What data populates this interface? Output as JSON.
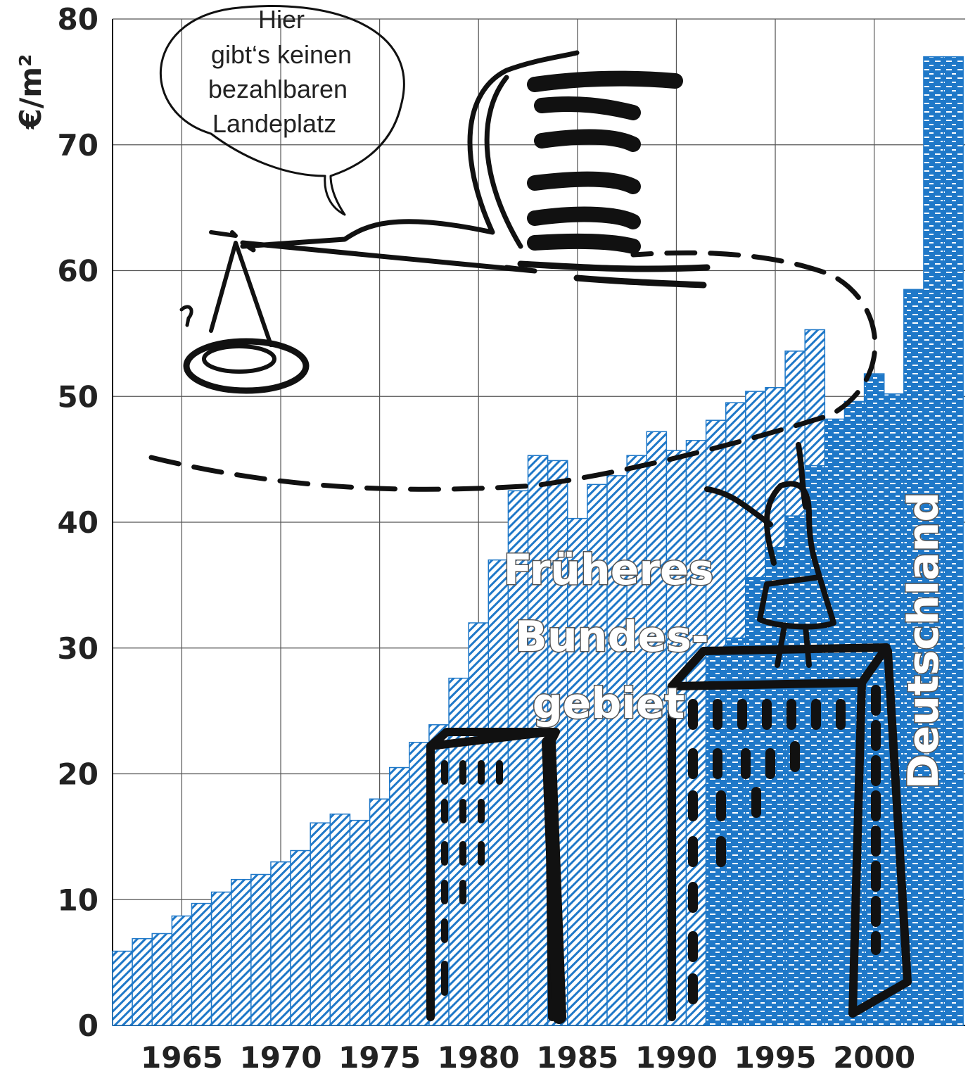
{
  "chart_data": {
    "type": "bar",
    "y_label": "€/m²",
    "annotation": [
      "Hier",
      "gibt‘s keinen",
      "bezahlbaren",
      "Landeplatz"
    ],
    "x": [
      1962,
      1963,
      1964,
      1965,
      1966,
      1967,
      1968,
      1969,
      1970,
      1971,
      1972,
      1973,
      1974,
      1975,
      1976,
      1977,
      1978,
      1979,
      1980,
      1981,
      1982,
      1983,
      1984,
      1985,
      1986,
      1987,
      1988,
      1989,
      1990,
      1991,
      1992,
      1993,
      1994,
      1995,
      1996,
      1997,
      1998,
      1999,
      2000,
      2001,
      2002,
      2003,
      2004
    ],
    "series": [
      {
        "name": [
          "Früheres",
          "Bundes-",
          "gebiet"
        ],
        "color": "#1f78c8",
        "pattern": "hatch",
        "values": [
          5.9,
          6.9,
          7.3,
          8.7,
          9.7,
          10.6,
          11.6,
          12.0,
          13.0,
          13.9,
          16.1,
          16.8,
          16.3,
          18.0,
          20.5,
          22.5,
          23.9,
          27.6,
          32.0,
          37.0,
          42.5,
          45.3,
          44.9,
          40.3,
          43.0,
          43.7,
          45.3,
          47.2,
          45.7,
          46.5,
          48.1,
          49.5,
          50.4,
          50.7,
          53.6,
          55.3,
          null,
          null,
          null,
          null,
          null,
          null,
          null
        ]
      },
      {
        "name": "Deutschland",
        "color": "#1f78c8",
        "pattern": "brick",
        "values": [
          null,
          null,
          null,
          null,
          null,
          null,
          null,
          null,
          null,
          null,
          null,
          null,
          null,
          null,
          null,
          null,
          null,
          null,
          null,
          null,
          null,
          null,
          null,
          null,
          null,
          null,
          null,
          null,
          null,
          null,
          29.5,
          30.8,
          35.6,
          38.0,
          40.5,
          44.5,
          48.2,
          49.6,
          51.8,
          50.2,
          58.5,
          77.0,
          77.0
        ]
      }
    ],
    "xlim": [
      1961.5,
      2004.6
    ],
    "ylim": [
      0,
      80
    ],
    "xticks": [
      1965,
      1970,
      1975,
      1980,
      1985,
      1990,
      1995,
      2000
    ],
    "yticks": [
      0,
      10,
      20,
      30,
      40,
      50,
      60,
      70,
      80
    ],
    "grid": true
  }
}
